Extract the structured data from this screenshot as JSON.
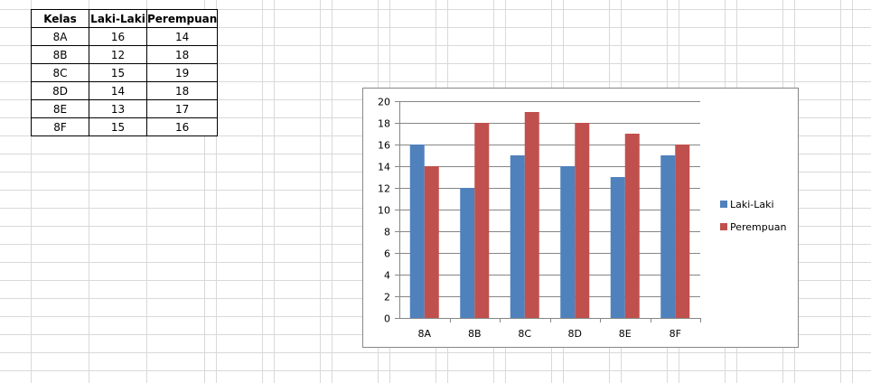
{
  "sheet": {
    "table": {
      "headers": [
        "Kelas",
        "Laki-Laki",
        "Perempuan"
      ],
      "rows": [
        [
          "8A",
          "16",
          "14"
        ],
        [
          "8B",
          "12",
          "18"
        ],
        [
          "8C",
          "15",
          "19"
        ],
        [
          "8D",
          "14",
          "18"
        ],
        [
          "8E",
          "13",
          "17"
        ],
        [
          "8F",
          "15",
          "16"
        ]
      ]
    }
  },
  "chart_data": {
    "type": "bar",
    "categories": [
      "8A",
      "8B",
      "8C",
      "8D",
      "8E",
      "8F"
    ],
    "series": [
      {
        "name": "Laki-Laki",
        "values": [
          16,
          12,
          15,
          14,
          13,
          15
        ],
        "color": "#4f81bd"
      },
      {
        "name": "Perempuan",
        "values": [
          14,
          18,
          19,
          18,
          17,
          16
        ],
        "color": "#c0504d"
      }
    ],
    "ylim": [
      0,
      20
    ],
    "yticks": [
      "0",
      "2",
      "4",
      "6",
      "8",
      "10",
      "12",
      "14",
      "16",
      "18",
      "20"
    ],
    "grid": true,
    "legend_position": "right",
    "title": "",
    "xlabel": "",
    "ylabel": ""
  }
}
